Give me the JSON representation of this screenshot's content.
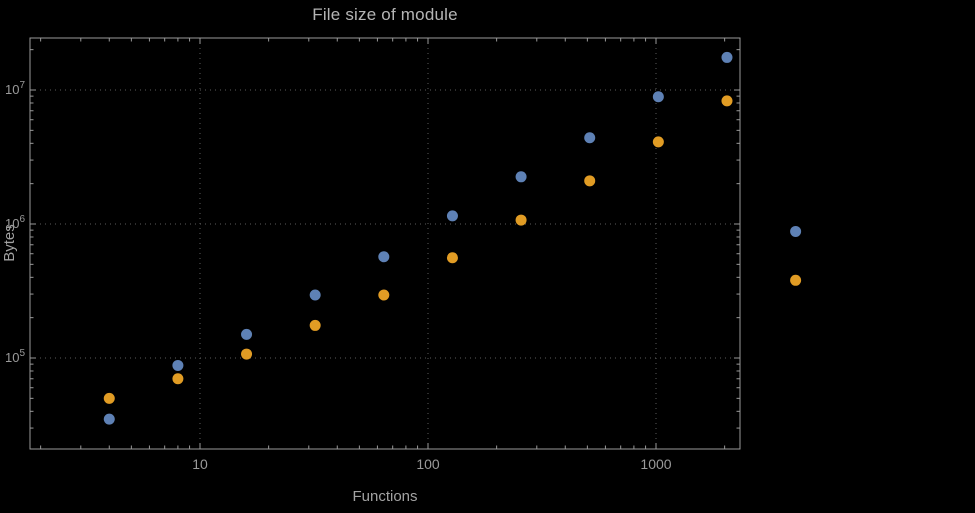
{
  "page": {
    "background_color": "#000000",
    "frame_color": "#9a9a9a",
    "grid_color": "#5c5c5c",
    "text_color": "#a2a2a2"
  },
  "chart_data": {
    "type": "scatter",
    "title": "File size of module",
    "xlabel": "Functions",
    "ylabel": "Bytes",
    "x_scale": "log",
    "y_scale": "log",
    "grid": "dotted",
    "legend": "none",
    "x_ticks": [
      10,
      100,
      1000
    ],
    "x_tick_labels": [
      "10",
      "100",
      "1000"
    ],
    "y_ticks": [
      100000,
      1000000,
      10000000
    ],
    "y_tick_labels": [
      {
        "base": "10",
        "exp": "5"
      },
      {
        "base": "10",
        "exp": "6"
      },
      {
        "base": "10",
        "exp": "7"
      }
    ],
    "xlim": [
      1.8,
      2350
    ],
    "ylim": [
      21000,
      24000000
    ],
    "series": [
      {
        "name": "series-1-blue",
        "color": "#5e81b5",
        "points": [
          [
            4,
            35000
          ],
          [
            8,
            88000
          ],
          [
            16,
            150000
          ],
          [
            32,
            295000
          ],
          [
            64,
            570000
          ],
          [
            128,
            1150000
          ],
          [
            256,
            2250000
          ],
          [
            512,
            4400000
          ],
          [
            1024,
            8900000
          ],
          [
            2048,
            17500000
          ],
          [
            4096,
            880000
          ]
        ]
      },
      {
        "name": "series-2-orange",
        "color": "#e19c24",
        "points": [
          [
            4,
            50000
          ],
          [
            8,
            70000
          ],
          [
            16,
            107000
          ],
          [
            32,
            175000
          ],
          [
            64,
            295000
          ],
          [
            128,
            560000
          ],
          [
            256,
            1070000
          ],
          [
            512,
            2100000
          ],
          [
            1024,
            4100000
          ],
          [
            2048,
            8300000
          ],
          [
            4096,
            380000
          ]
        ]
      }
    ]
  }
}
